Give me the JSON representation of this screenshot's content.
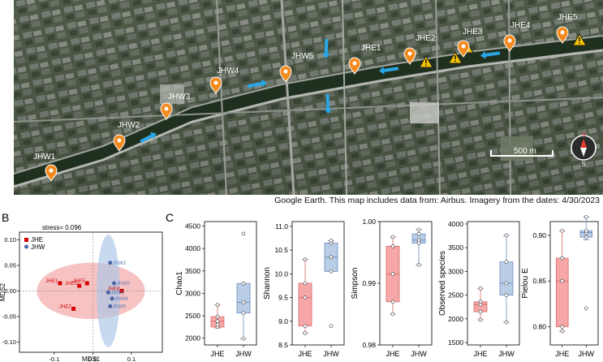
{
  "panels": {
    "a": "A",
    "b": "B",
    "c": "C"
  },
  "map": {
    "caption": "Google Earth. This map includes data from: Airbus. Imagery from the dates: 4/30/2023",
    "scale_label": "500 m",
    "compass": {
      "n": "N",
      "s": "S"
    },
    "sites": [
      "JHW1",
      "JHW2",
      "JHW3",
      "JHW4",
      "JHW5",
      "JHE1",
      "JHE2",
      "JHE3",
      "JHE4",
      "JHE5"
    ],
    "colors": {
      "pin": "#f28a1e",
      "arrow": "#2aa7e6",
      "warning": "#f5c400"
    }
  },
  "mds": {
    "stress": "stress= 0.096",
    "xlabel": "MDS1",
    "ylabel": "MDS2",
    "legend": [
      {
        "label": "JHE",
        "color": "#d40000"
      },
      {
        "label": "JHW",
        "color": "#4a64a8"
      }
    ],
    "xticks": [
      "-0.1",
      "0.0",
      "0.1"
    ],
    "yticks": [
      "0.10",
      "0.05",
      "0.00",
      "-0.05",
      "-0.10"
    ],
    "xlim": [
      -0.19,
      0.18
    ],
    "ylim": [
      -0.12,
      0.115
    ],
    "jhe_points": [
      {
        "label": "JHE1",
        "x": -0.085,
        "y": 0.015
      },
      {
        "label": "JHE2",
        "x": -0.05,
        "y": -0.035
      },
      {
        "label": "JHE3",
        "x": -0.035,
        "y": 0.01
      },
      {
        "label": "JHE4",
        "x": 0.075,
        "y": 0.0
      },
      {
        "label": "JHE5",
        "x": -0.015,
        "y": 0.015
      }
    ],
    "jhw_points": [
      {
        "label": "JHW1",
        "x": 0.045,
        "y": 0.055
      },
      {
        "label": "JHW2",
        "x": 0.055,
        "y": 0.015
      },
      {
        "label": "JHW3",
        "x": 0.04,
        "y": -0.003
      },
      {
        "label": "JHW4",
        "x": 0.05,
        "y": -0.015
      },
      {
        "label": "JHW5",
        "x": 0.045,
        "y": -0.03
      }
    ]
  },
  "chart_data": [
    {
      "type": "box",
      "ylabel": "Chao1",
      "categories": [
        "JHE",
        "JHW"
      ],
      "yticks": [
        2000,
        2500,
        3000,
        3500,
        4000,
        4500
      ],
      "ylim": [
        1850,
        4600
      ],
      "series": [
        {
          "name": "JHE",
          "q1": 2250,
          "median": 2380,
          "q3": 2480,
          "min": 2230,
          "max": 2740,
          "points": [
            2250,
            2300,
            2380,
            2480,
            2740
          ]
        },
        {
          "name": "JHW",
          "q1": 2560,
          "median": 2800,
          "q3": 3220,
          "min": 1990,
          "max": 3220,
          "points": [
            1990,
            2560,
            2800,
            3220,
            4330
          ]
        }
      ]
    },
    {
      "type": "box",
      "ylabel": "Shannon",
      "categories": [
        "JHE",
        "JHW"
      ],
      "yticks": [
        8.5,
        9.0,
        9.5,
        10.0,
        10.5,
        11.0
      ],
      "ylim": [
        8.5,
        11.1
      ],
      "series": [
        {
          "name": "JHE",
          "q1": 8.9,
          "median": 9.5,
          "q3": 9.8,
          "min": 8.75,
          "max": 10.3,
          "points": [
            8.75,
            8.9,
            9.5,
            9.8,
            10.3
          ]
        },
        {
          "name": "JHW",
          "q1": 10.05,
          "median": 10.35,
          "q3": 10.65,
          "min": 10.05,
          "max": 10.7,
          "points": [
            8.9,
            10.05,
            10.35,
            10.65,
            10.7
          ]
        }
      ]
    },
    {
      "type": "box",
      "ylabel": "Simpson",
      "categories": [
        "JHE",
        "JHW"
      ],
      "yticks": [
        0.98,
        0.99,
        1.0
      ],
      "ylim": [
        0.98,
        1.0
      ],
      "series": [
        {
          "name": "JHE",
          "q1": 0.987,
          "median": 0.9915,
          "q3": 0.996,
          "min": 0.985,
          "max": 0.9975,
          "points": [
            0.985,
            0.987,
            0.9915,
            0.996,
            0.9975
          ]
        },
        {
          "name": "JHW",
          "q1": 0.9965,
          "median": 0.997,
          "q3": 0.998,
          "min": 0.993,
          "max": 0.9987,
          "points": [
            0.993,
            0.9965,
            0.997,
            0.998,
            0.9987
          ]
        }
      ]
    },
    {
      "type": "box",
      "ylabel": "Observed species",
      "categories": [
        "JHE",
        "JHW"
      ],
      "yticks": [
        1500,
        2000,
        2500,
        3000,
        3500,
        4000
      ],
      "ylim": [
        1450,
        4050
      ],
      "series": [
        {
          "name": "JHE",
          "q1": 2150,
          "median": 2300,
          "q3": 2360,
          "min": 1980,
          "max": 2640,
          "points": [
            1980,
            2150,
            2300,
            2360,
            2640
          ]
        },
        {
          "name": "JHW",
          "q1": 2500,
          "median": 2750,
          "q3": 3200,
          "min": 1930,
          "max": 3760,
          "points": [
            1930,
            2500,
            2750,
            3200,
            3760
          ]
        }
      ]
    },
    {
      "type": "box",
      "ylabel": "Pielou E",
      "categories": [
        "JHE",
        "JHW"
      ],
      "yticks": [
        0.8,
        0.85,
        0.9
      ],
      "ylim": [
        0.78,
        0.915
      ],
      "series": [
        {
          "name": "JHE",
          "q1": 0.8,
          "median": 0.85,
          "q3": 0.875,
          "min": 0.795,
          "max": 0.905,
          "points": [
            0.795,
            0.8,
            0.85,
            0.875,
            0.905
          ]
        },
        {
          "name": "JHW",
          "q1": 0.898,
          "median": 0.903,
          "q3": 0.905,
          "min": 0.895,
          "max": 0.92,
          "points": [
            0.82,
            0.898,
            0.903,
            0.905,
            0.92
          ]
        }
      ]
    }
  ],
  "box_colors": {
    "JHE": {
      "fill": "#f7a7a7",
      "stroke": "#d86a6a"
    },
    "JHW": {
      "fill": "#b9cde6",
      "stroke": "#6f8fbf"
    }
  }
}
